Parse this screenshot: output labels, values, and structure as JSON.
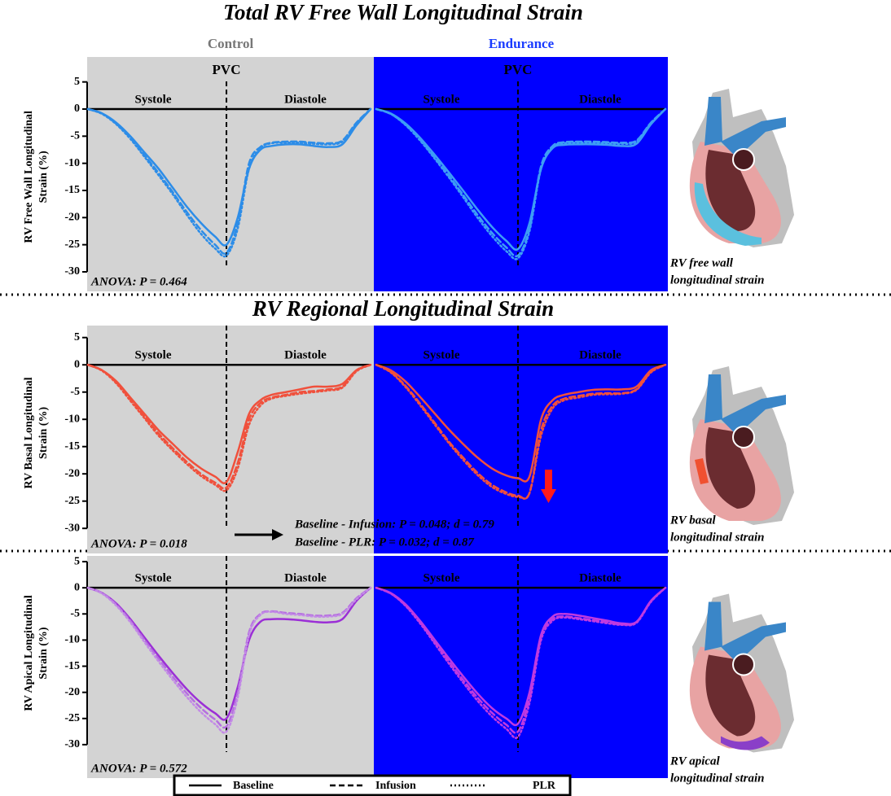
{
  "title": "Total RV Free Wall Longitudinal Strain",
  "columns": [
    "Control",
    "Endurance"
  ],
  "section_title": "RV Regional Longitudinal Strain",
  "comparisons": [
    "Baseline - Infusion: P = 0.048; d = 0.79",
    "Baseline - PLR: P = 0.032; d = 0.87"
  ],
  "chart_data": [
    {
      "type": "line",
      "y_label": [
        "RV Free Wall Longitudinal",
        "Strain (%)"
      ],
      "ylim": [
        -33.6,
        9.6
      ],
      "yticks": [
        5,
        0,
        -5,
        -10,
        -15,
        -20,
        -25,
        -30
      ],
      "xlim": [
        0,
        100
      ],
      "marker": {
        "label": "PVC",
        "x": 49
      },
      "phase_labels": [
        "Systole",
        "Diastole"
      ],
      "annotation": "ANOVA: P = 0.464",
      "caption": [
        "RV free wall",
        "longitudinal strain"
      ],
      "x": [
        0,
        5,
        10,
        15,
        20,
        25,
        30,
        35,
        40,
        45,
        49,
        53,
        57,
        61,
        65,
        70,
        75,
        80,
        85,
        90,
        95,
        100
      ],
      "panels": [
        {
          "series": [
            {
              "name": "Baseline",
              "style": "solid",
              "color": "#2d8de8",
              "values": [
                0,
                -0.8,
                -2.5,
                -5,
                -8,
                -11,
                -14.5,
                -18,
                -21,
                -23.5,
                -25,
                -20,
                -11,
                -7.5,
                -6.8,
                -6.5,
                -6.5,
                -6.8,
                -7,
                -6.5,
                -3,
                0
              ]
            },
            {
              "name": "Infusion",
              "style": "dashed",
              "color": "#2d8de8",
              "values": [
                0,
                -0.8,
                -2.7,
                -5.3,
                -8.5,
                -11.8,
                -15.3,
                -19,
                -22.3,
                -25,
                -26.5,
                -21,
                -10,
                -7,
                -6.2,
                -6,
                -6,
                -6.2,
                -6.3,
                -5.8,
                -2.5,
                0
              ]
            },
            {
              "name": "PLR",
              "style": "dotted",
              "color": "#2d8de8",
              "values": [
                0,
                -0.9,
                -2.8,
                -5.5,
                -8.8,
                -12.2,
                -15.7,
                -19.5,
                -23,
                -25.7,
                -27,
                -22,
                -11,
                -7.2,
                -6.3,
                -6.2,
                -6.2,
                -6.4,
                -6.5,
                -6,
                -2.7,
                0
              ]
            }
          ]
        },
        {
          "series": [
            {
              "name": "Baseline",
              "style": "solid",
              "color": "#3d9df5",
              "values": [
                0,
                -0.8,
                -2.6,
                -5.2,
                -8.3,
                -11.6,
                -15,
                -18.5,
                -21.7,
                -24.3,
                -25.8,
                -21,
                -11,
                -7.2,
                -6.6,
                -6.5,
                -6.5,
                -6.6,
                -6.8,
                -6.4,
                -2.8,
                0
              ]
            },
            {
              "name": "Infusion",
              "style": "dashed",
              "color": "#3d9df5",
              "values": [
                0,
                -0.9,
                -2.8,
                -5.5,
                -8.8,
                -12.2,
                -15.8,
                -19.5,
                -22.8,
                -25.5,
                -27,
                -22,
                -10.5,
                -6.8,
                -6.1,
                -6,
                -6,
                -6.1,
                -6.2,
                -5.8,
                -2.5,
                0
              ]
            },
            {
              "name": "PLR",
              "style": "dotted",
              "color": "#3d9df5",
              "values": [
                0,
                -0.9,
                -2.9,
                -5.7,
                -9,
                -12.5,
                -16.2,
                -20,
                -23.4,
                -26.2,
                -27.5,
                -22.5,
                -11,
                -7,
                -6.3,
                -6.2,
                -6.2,
                -6.3,
                -6.4,
                -6,
                -2.6,
                0
              ]
            }
          ]
        }
      ]
    },
    {
      "type": "line",
      "y_label": [
        "RV Basal Longitudinal",
        "Strain (%)"
      ],
      "ylim": [
        -34.6,
        7.2
      ],
      "yticks": [
        5,
        0,
        -5,
        -10,
        -15,
        -20,
        -25,
        -30
      ],
      "xlim": [
        0,
        100
      ],
      "marker": {
        "x": 49
      },
      "phase_labels": [
        "Systole",
        "Diastole"
      ],
      "annotation": "ANOVA: P = 0.018",
      "caption": [
        "RV basal",
        "longitudinal strain"
      ],
      "x": [
        0,
        5,
        10,
        15,
        20,
        25,
        30,
        35,
        40,
        45,
        49,
        53,
        57,
        61,
        65,
        70,
        75,
        80,
        85,
        90,
        95,
        100
      ],
      "panels": [
        {
          "series": [
            {
              "name": "Baseline",
              "style": "solid",
              "color": "#f0503c",
              "values": [
                0,
                -1,
                -3,
                -6,
                -9,
                -12,
                -14.5,
                -17,
                -19,
                -20.5,
                -21.5,
                -16,
                -9,
                -6.5,
                -5.5,
                -5,
                -4.5,
                -4,
                -4,
                -3.5,
                -1,
                0
              ]
            },
            {
              "name": "Infusion",
              "style": "dashed",
              "color": "#f0503c",
              "values": [
                0,
                -1,
                -3.2,
                -6.3,
                -9.5,
                -12.6,
                -15.3,
                -17.8,
                -20,
                -21.6,
                -22.5,
                -18,
                -10,
                -7,
                -6,
                -5.5,
                -5,
                -4.8,
                -4.5,
                -4,
                -1,
                0
              ]
            },
            {
              "name": "PLR",
              "style": "dotted",
              "color": "#f0503c",
              "values": [
                0,
                -1.1,
                -3.4,
                -6.6,
                -9.8,
                -13,
                -15.7,
                -18.2,
                -20.4,
                -22,
                -23,
                -19,
                -11,
                -7.5,
                -6.2,
                -5.7,
                -5.3,
                -5,
                -4.7,
                -4.2,
                -1.2,
                0
              ]
            }
          ]
        },
        {
          "series": [
            {
              "name": "Baseline",
              "style": "solid",
              "color": "#f0503c",
              "values": [
                0,
                -1,
                -3,
                -5.8,
                -8.8,
                -11.8,
                -14.5,
                -17,
                -19,
                -20.3,
                -20.8,
                -20.5,
                -10,
                -6.5,
                -5.5,
                -5,
                -4.6,
                -4.5,
                -4.5,
                -4,
                -1,
                0
              ]
            },
            {
              "name": "Infusion",
              "style": "dashed",
              "color": "#f0503c",
              "values": [
                0,
                -1.3,
                -3.8,
                -7,
                -10.5,
                -14,
                -17,
                -19.8,
                -22,
                -23.4,
                -24,
                -23.5,
                -12,
                -7.5,
                -6.2,
                -5.7,
                -5.3,
                -5.2,
                -5.2,
                -4.5,
                -1.3,
                0
              ]
            },
            {
              "name": "PLR",
              "style": "dotted",
              "color": "#f0503c",
              "values": [
                0,
                -1.4,
                -4,
                -7.3,
                -10.8,
                -14.3,
                -17.4,
                -20.2,
                -22.4,
                -23.7,
                -24.2,
                -23.5,
                -13,
                -8,
                -6.5,
                -6,
                -5.5,
                -5.4,
                -5.3,
                -4.6,
                -1.4,
                0
              ]
            }
          ]
        }
      ]
    },
    {
      "type": "line",
      "y_label": [
        "RV Apical Longitudinal",
        "Strain (%)"
      ],
      "ylim": [
        -36.4,
        6.1
      ],
      "yticks": [
        5,
        0,
        -5,
        -10,
        -15,
        -20,
        -25,
        -30
      ],
      "xlim": [
        0,
        100
      ],
      "marker": {
        "x": 49
      },
      "phase_labels": [
        "Systole",
        "Diastole"
      ],
      "annotation": "ANOVA: P = 0.572",
      "caption": [
        "RV apical",
        "longitudinal strain"
      ],
      "x": [
        0,
        5,
        10,
        15,
        20,
        25,
        30,
        35,
        40,
        45,
        49,
        53,
        57,
        61,
        65,
        70,
        75,
        80,
        85,
        90,
        95,
        100
      ],
      "panels": [
        {
          "series": [
            {
              "name": "Baseline",
              "style": "solid",
              "color": "#9b2fd6",
              "values": [
                0,
                -1,
                -3,
                -6,
                -9.5,
                -13,
                -16.3,
                -19.4,
                -22,
                -24,
                -25,
                -19,
                -10,
                -6.5,
                -6,
                -6,
                -6.2,
                -6.5,
                -6.6,
                -6,
                -2.5,
                0
              ]
            },
            {
              "name": "Infusion",
              "style": "dashed",
              "color": "#b56ee0",
              "values": [
                0,
                -1,
                -3.2,
                -6.3,
                -10,
                -13.6,
                -17,
                -20.2,
                -23,
                -25.2,
                -26.5,
                -20,
                -8.5,
                -5,
                -4.5,
                -4.8,
                -5,
                -5.3,
                -5.3,
                -4.8,
                -2,
                0
              ]
            },
            {
              "name": "PLR",
              "style": "dotted",
              "color": "#c38be6",
              "values": [
                0,
                -1.1,
                -3.4,
                -6.6,
                -10.4,
                -14.1,
                -17.6,
                -20.9,
                -23.8,
                -26.1,
                -27.5,
                -21,
                -9,
                -5.2,
                -4.6,
                -5,
                -5.2,
                -5.5,
                -5.5,
                -5,
                -2.2,
                0
              ]
            }
          ]
        },
        {
          "series": [
            {
              "name": "Baseline",
              "style": "solid",
              "color": "#c03ae0",
              "values": [
                0,
                -1,
                -3.1,
                -6.2,
                -9.8,
                -13.4,
                -16.9,
                -20.2,
                -23,
                -25,
                -26,
                -20,
                -9,
                -5.5,
                -5,
                -5.3,
                -5.8,
                -6.3,
                -6.8,
                -6.5,
                -2.5,
                0
              ]
            },
            {
              "name": "Infusion",
              "style": "dashed",
              "color": "#c03ae0",
              "values": [
                0,
                -1.1,
                -3.3,
                -6.5,
                -10.2,
                -14,
                -17.6,
                -21,
                -23.9,
                -26.2,
                -27.5,
                -21,
                -9.5,
                -6,
                -5.5,
                -5.8,
                -6.2,
                -6.6,
                -7,
                -6.6,
                -2.6,
                0
              ]
            },
            {
              "name": "PLR",
              "style": "dotted",
              "color": "#c03ae0",
              "values": [
                0,
                -1.1,
                -3.4,
                -6.7,
                -10.5,
                -14.4,
                -18.1,
                -21.6,
                -24.6,
                -27,
                -28.5,
                -22,
                -10,
                -6.3,
                -5.7,
                -6,
                -6.4,
                -6.8,
                -7.1,
                -6.7,
                -2.7,
                0
              ]
            }
          ]
        }
      ]
    }
  ]
}
